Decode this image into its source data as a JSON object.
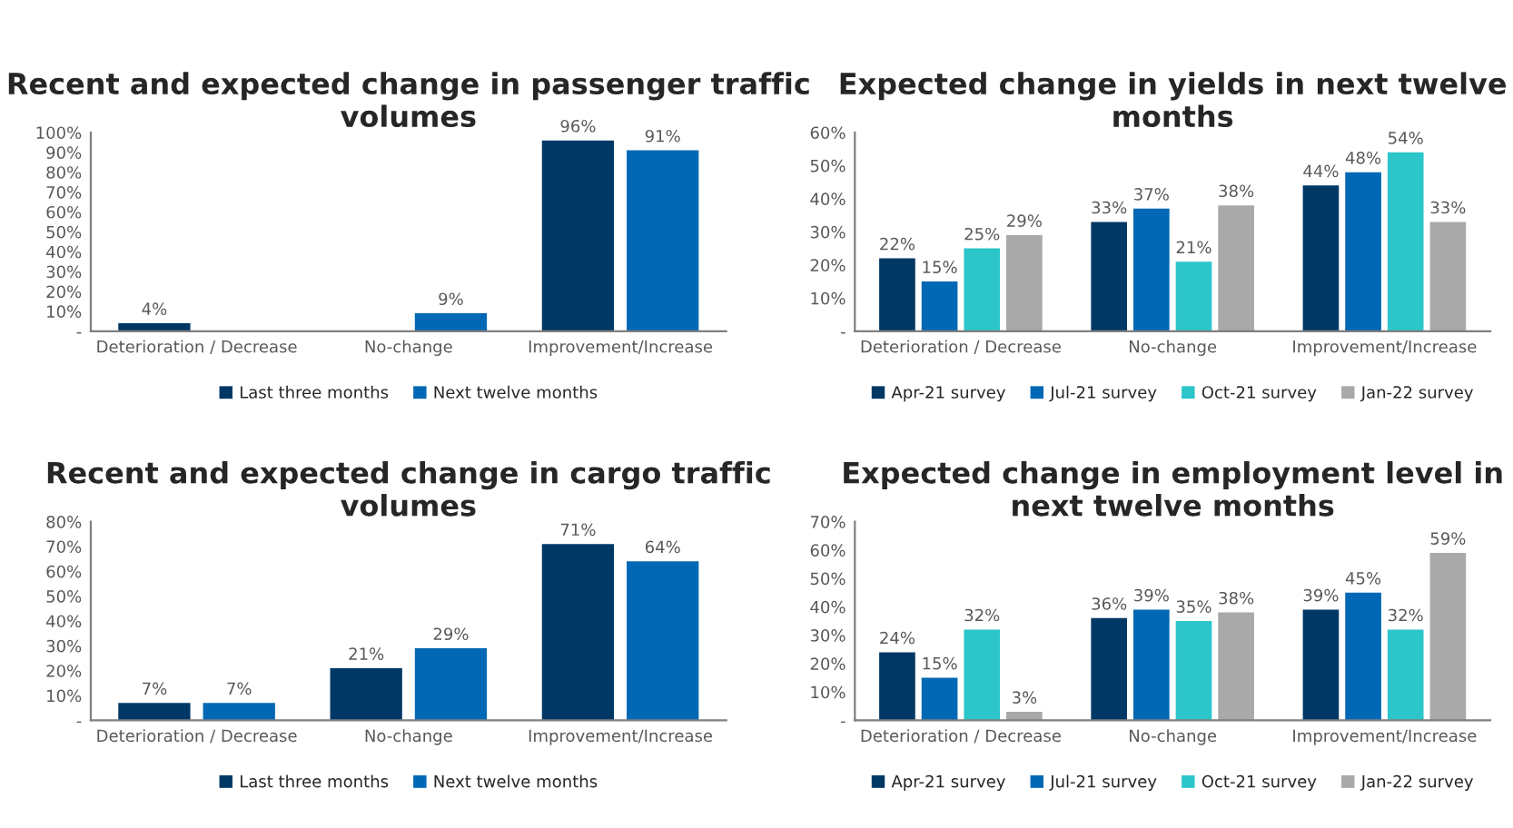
{
  "chart_data": [
    {
      "type": "bar",
      "title": "Recent and expected change in passenger traffic volumes",
      "categories": [
        "Deterioration / Decrease",
        "No-change",
        "Improvement/Increase"
      ],
      "series": [
        {
          "name": "Last three months",
          "color": "#003865",
          "values": [
            4,
            null,
            96
          ],
          "value_labels": [
            "4%",
            null,
            "96%"
          ]
        },
        {
          "name": "Next twelve months",
          "color": "#0068b4",
          "values": [
            null,
            9,
            91
          ],
          "value_labels": [
            null,
            "9%",
            "91%"
          ]
        }
      ],
      "ylim": [
        0,
        100
      ],
      "yticks": [
        {
          "value": 0,
          "label": "-"
        },
        {
          "value": 10,
          "label": "10%"
        },
        {
          "value": 20,
          "label": "20%"
        },
        {
          "value": 30,
          "label": "30%"
        },
        {
          "value": 40,
          "label": "40%"
        },
        {
          "value": 50,
          "label": "50%"
        },
        {
          "value": 60,
          "label": "60%"
        },
        {
          "value": 70,
          "label": "70%"
        },
        {
          "value": 80,
          "label": "80%"
        },
        {
          "value": 90,
          "label": "90%"
        },
        {
          "value": 100,
          "label": "100%"
        }
      ],
      "grid": false,
      "legend": "bottom"
    },
    {
      "type": "bar",
      "title": "Expected change in yields in next twelve months",
      "categories": [
        "Deterioration / Decrease",
        "No-change",
        "Improvement/Increase"
      ],
      "series": [
        {
          "name": "Apr-21 survey",
          "color": "#003865",
          "values": [
            22,
            33,
            44
          ],
          "value_labels": [
            "22%",
            "33%",
            "44%"
          ]
        },
        {
          "name": "Jul-21 survey",
          "color": "#0068b4",
          "values": [
            15,
            37,
            48
          ],
          "value_labels": [
            "15%",
            "37%",
            "48%"
          ]
        },
        {
          "name": "Oct-21 survey",
          "color": "#2cc5c9",
          "values": [
            25,
            21,
            54
          ],
          "value_labels": [
            "25%",
            "21%",
            "54%"
          ]
        },
        {
          "name": "Jan-22 survey",
          "color": "#a9a9a9",
          "values": [
            29,
            38,
            33
          ],
          "value_labels": [
            "29%",
            "38%",
            "33%"
          ]
        }
      ],
      "ylim": [
        0,
        60
      ],
      "yticks": [
        {
          "value": 0,
          "label": "-"
        },
        {
          "value": 10,
          "label": "10%"
        },
        {
          "value": 20,
          "label": "20%"
        },
        {
          "value": 30,
          "label": "30%"
        },
        {
          "value": 40,
          "label": "40%"
        },
        {
          "value": 50,
          "label": "50%"
        },
        {
          "value": 60,
          "label": "60%"
        }
      ],
      "grid": false,
      "legend": "bottom"
    },
    {
      "type": "bar",
      "title": "Recent and expected change in cargo traffic volumes",
      "categories": [
        "Deterioration / Decrease",
        "No-change",
        "Improvement/Increase"
      ],
      "series": [
        {
          "name": "Last three months",
          "color": "#003865",
          "values": [
            7,
            21,
            71
          ],
          "value_labels": [
            "7%",
            "21%",
            "71%"
          ]
        },
        {
          "name": "Next twelve months",
          "color": "#0068b4",
          "values": [
            7,
            29,
            64
          ],
          "value_labels": [
            "7%",
            "29%",
            "64%"
          ]
        }
      ],
      "ylim": [
        0,
        80
      ],
      "yticks": [
        {
          "value": 0,
          "label": "-"
        },
        {
          "value": 10,
          "label": "10%"
        },
        {
          "value": 20,
          "label": "20%"
        },
        {
          "value": 30,
          "label": "30%"
        },
        {
          "value": 40,
          "label": "40%"
        },
        {
          "value": 50,
          "label": "50%"
        },
        {
          "value": 60,
          "label": "60%"
        },
        {
          "value": 70,
          "label": "70%"
        },
        {
          "value": 80,
          "label": "80%"
        }
      ],
      "grid": false,
      "legend": "bottom"
    },
    {
      "type": "bar",
      "title": "Expected change in employment level in next twelve months",
      "categories": [
        "Deterioration / Decrease",
        "No-change",
        "Improvement/Increase"
      ],
      "series": [
        {
          "name": "Apr-21 survey",
          "color": "#003865",
          "values": [
            24,
            36,
            39
          ],
          "value_labels": [
            "24%",
            "36%",
            "39%"
          ]
        },
        {
          "name": "Jul-21 survey",
          "color": "#0068b4",
          "values": [
            15,
            39,
            45
          ],
          "value_labels": [
            "15%",
            "39%",
            "45%"
          ]
        },
        {
          "name": "Oct-21 survey",
          "color": "#2cc5c9",
          "values": [
            32,
            35,
            32
          ],
          "value_labels": [
            "32%",
            "35%",
            "32%"
          ]
        },
        {
          "name": "Jan-22 survey",
          "color": "#a9a9a9",
          "values": [
            3,
            38,
            59
          ],
          "value_labels": [
            "3%",
            "38%",
            "59%"
          ]
        }
      ],
      "ylim": [
        0,
        70
      ],
      "yticks": [
        {
          "value": 0,
          "label": "-"
        },
        {
          "value": 10,
          "label": "10%"
        },
        {
          "value": 20,
          "label": "20%"
        },
        {
          "value": 30,
          "label": "30%"
        },
        {
          "value": 40,
          "label": "40%"
        },
        {
          "value": 50,
          "label": "50%"
        },
        {
          "value": 60,
          "label": "60%"
        },
        {
          "value": 70,
          "label": "70%"
        }
      ],
      "grid": false,
      "legend": "bottom"
    }
  ]
}
